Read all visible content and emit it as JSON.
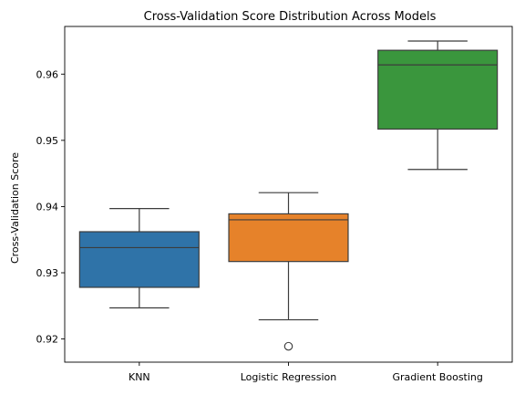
{
  "chart_data": {
    "type": "box",
    "title": "Cross-Validation Score Distribution Across Models",
    "xlabel": "",
    "ylabel": "Cross-Validation Score",
    "ylim": [
      0.9165,
      0.9672
    ],
    "yticks": [
      0.92,
      0.93,
      0.94,
      0.95,
      0.96
    ],
    "ytick_labels": [
      "0.92",
      "0.93",
      "0.94",
      "0.95",
      "0.96"
    ],
    "grid": false,
    "categories": [
      "KNN",
      "Logistic Regression",
      "Gradient Boosting"
    ],
    "boxes": [
      {
        "category": "KNN",
        "color": "#2f73a8",
        "whisker_low": 0.9247,
        "q1": 0.9278,
        "median": 0.9338,
        "q3": 0.9362,
        "whisker_high": 0.9397,
        "outliers": []
      },
      {
        "category": "Logistic Regression",
        "color": "#e6822a",
        "whisker_low": 0.9229,
        "q1": 0.9317,
        "median": 0.938,
        "q3": 0.9389,
        "whisker_high": 0.9421,
        "outliers": [
          0.9189
        ]
      },
      {
        "category": "Gradient Boosting",
        "color": "#3a963d",
        "whisker_low": 0.9456,
        "q1": 0.9517,
        "median": 0.9614,
        "q3": 0.9636,
        "whisker_high": 0.965,
        "outliers": []
      }
    ]
  }
}
